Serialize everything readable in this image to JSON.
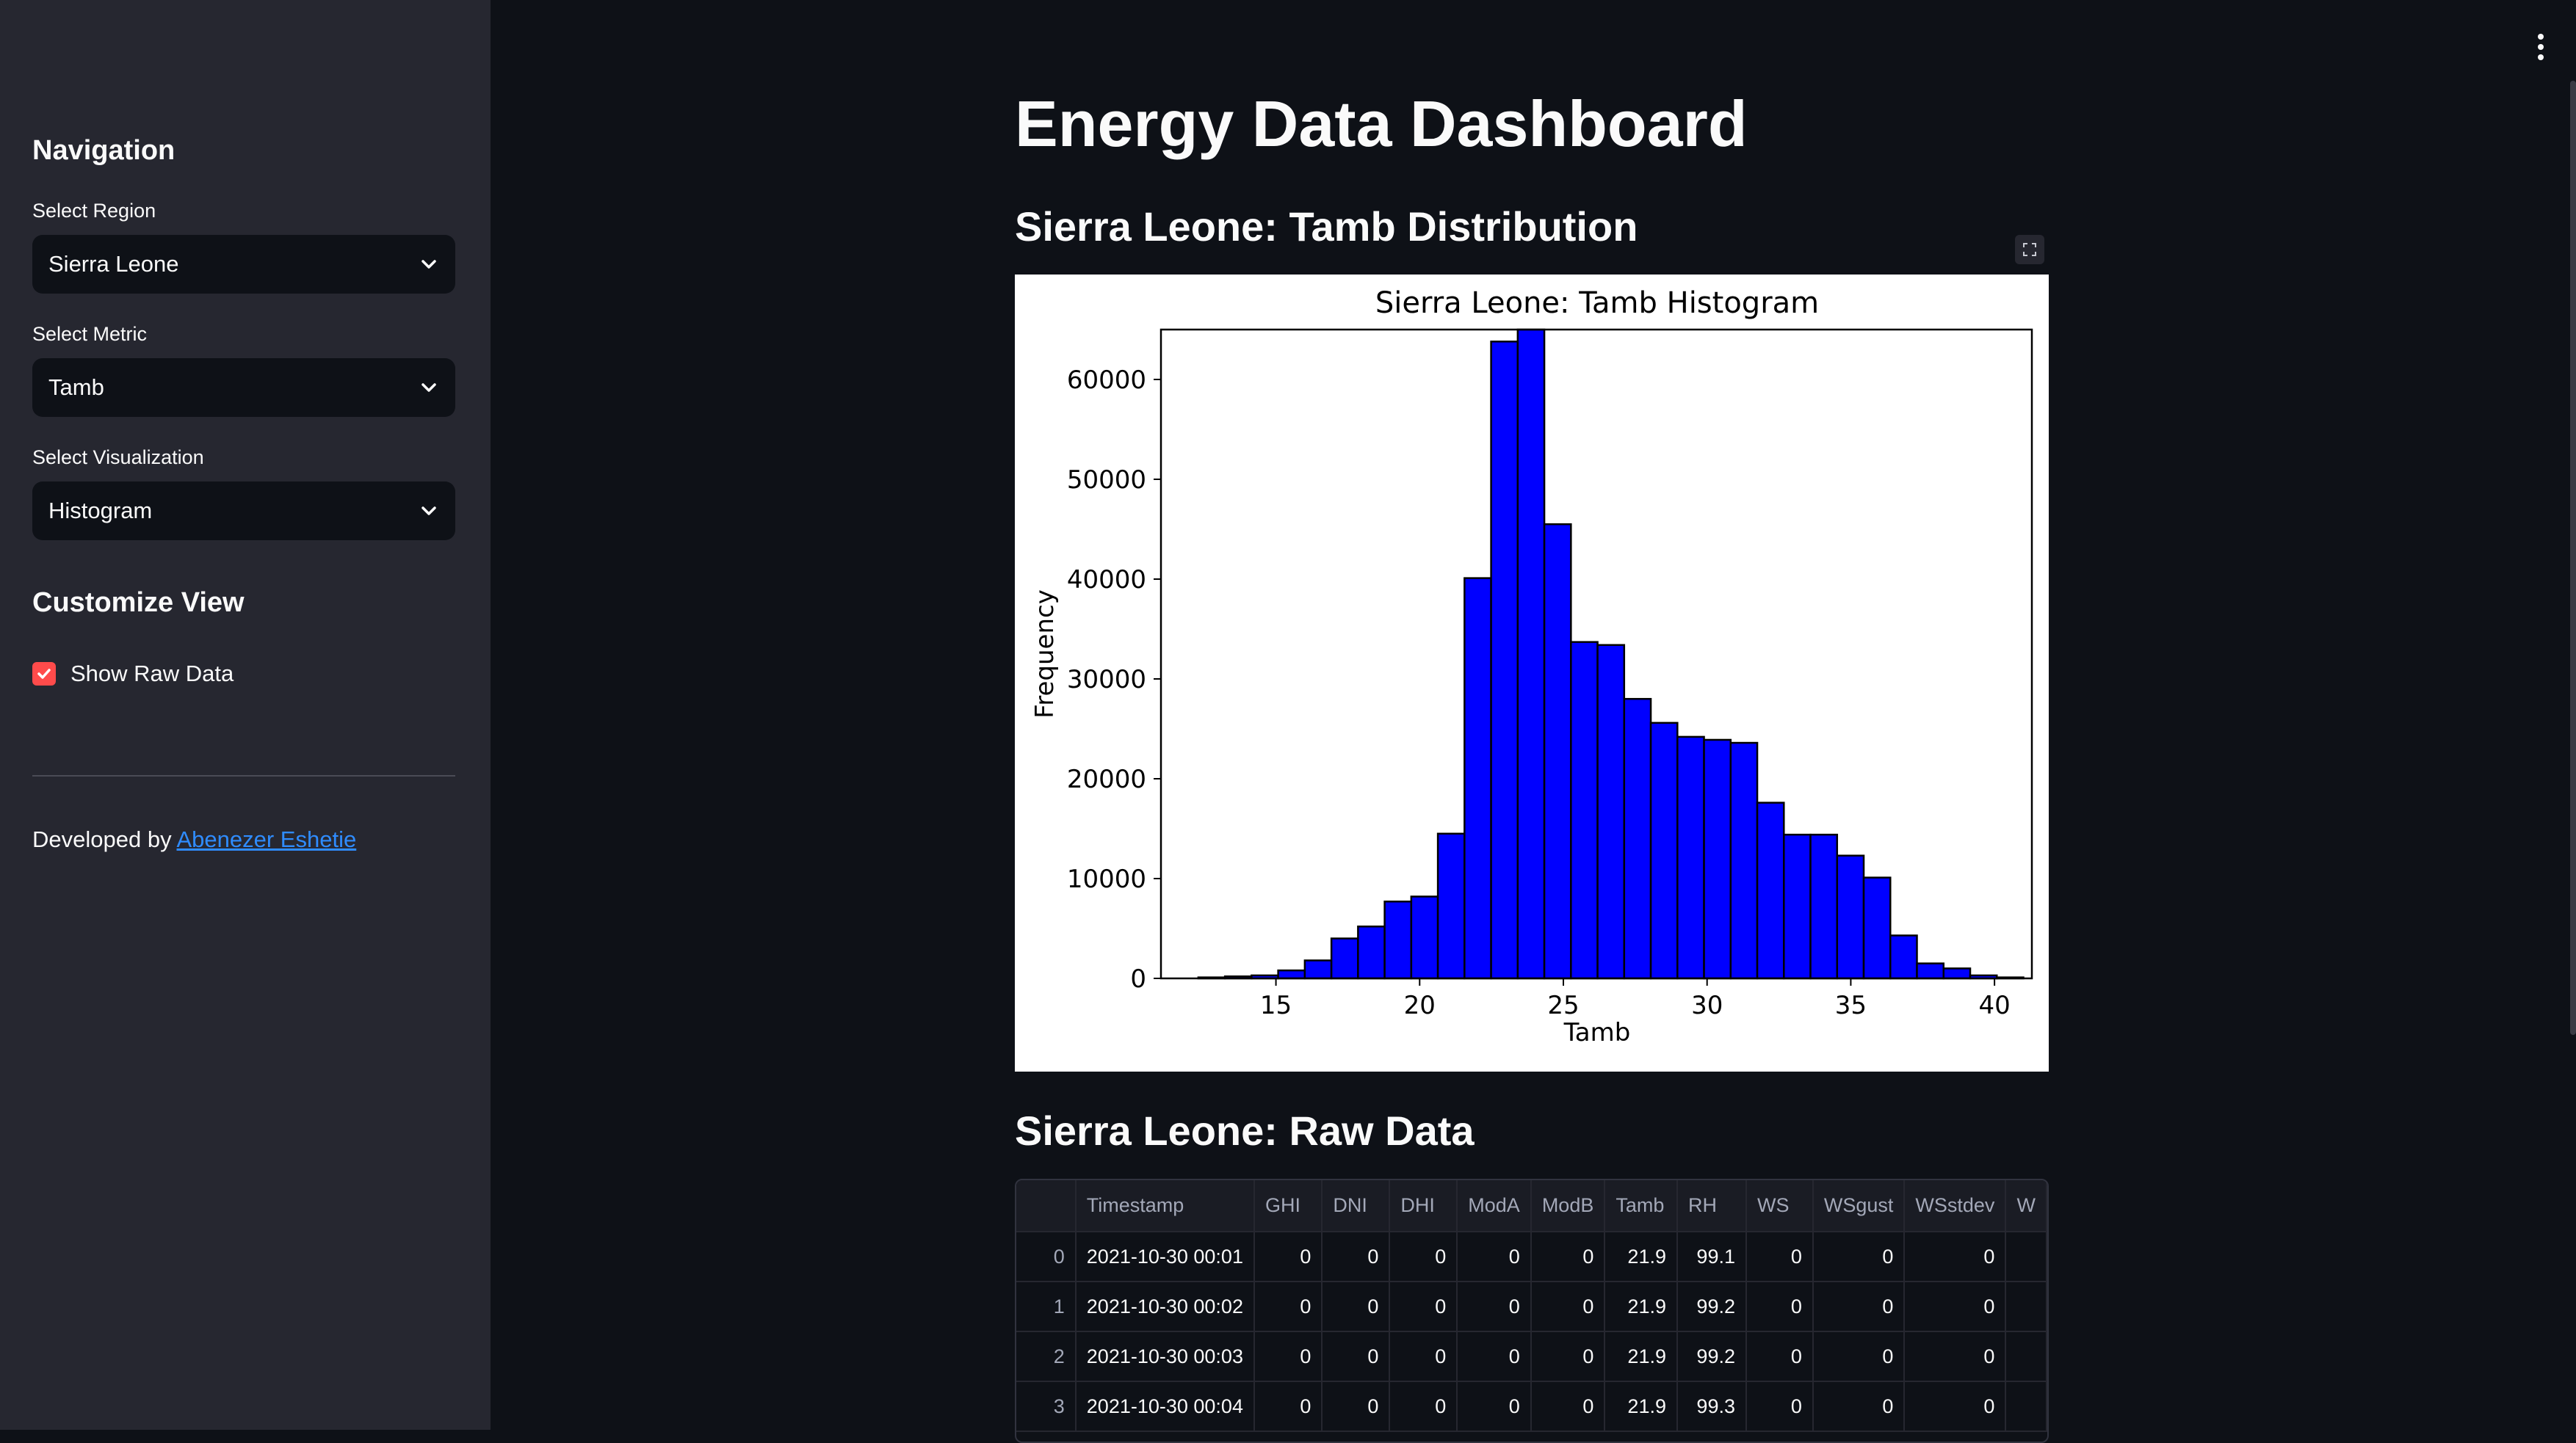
{
  "sidebar": {
    "heading": "Navigation",
    "region_label": "Select Region",
    "region_value": "Sierra Leone",
    "metric_label": "Select Metric",
    "metric_value": "Tamb",
    "viz_label": "Select Visualization",
    "viz_value": "Histogram",
    "customize_heading": "Customize View",
    "show_raw_label": "Show Raw Data",
    "show_raw_checked": true,
    "credit_prefix": "Developed by",
    "credit_link": "Abenezer Eshetie"
  },
  "main": {
    "title": "Energy Data Dashboard",
    "chart_section_title": "Sierra Leone: Tamb Distribution",
    "raw_section_title": "Sierra Leone: Raw Data"
  },
  "colors": {
    "accent": "#ff4b4b",
    "bar": "#0000ff",
    "link": "#2f8cff"
  },
  "chart_data": {
    "type": "bar",
    "title": "Sierra Leone: Tamb Histogram",
    "xlabel": "Tamb",
    "ylabel": "Frequency",
    "xlim": [
      11,
      41.3
    ],
    "ylim": [
      0,
      65000
    ],
    "xticks": [
      15,
      20,
      25,
      30,
      35,
      40
    ],
    "yticks": [
      0,
      10000,
      20000,
      30000,
      40000,
      50000,
      60000
    ],
    "bin_start": 12.3,
    "bin_width": 0.926,
    "values": [
      100,
      200,
      300,
      800,
      1800,
      4000,
      5200,
      7700,
      8200,
      14500,
      40100,
      63800,
      65000,
      45500,
      33700,
      33400,
      28000,
      25600,
      24200,
      23900,
      23600,
      17600,
      14400,
      14400,
      12300,
      10100,
      4300,
      1500,
      1000,
      300,
      100
    ],
    "bar_color": "#0000ff"
  },
  "table": {
    "columns": [
      "",
      "Timestamp",
      "GHI",
      "DNI",
      "DHI",
      "ModA",
      "ModB",
      "Tamb",
      "RH",
      "WS",
      "WSgust",
      "WSstdev",
      "W"
    ],
    "rows": [
      [
        "0",
        "2021-10-30 00:01",
        "0",
        "0",
        "0",
        "0",
        "0",
        "21.9",
        "99.1",
        "0",
        "0",
        "0",
        ""
      ],
      [
        "1",
        "2021-10-30 00:02",
        "0",
        "0",
        "0",
        "0",
        "0",
        "21.9",
        "99.2",
        "0",
        "0",
        "0",
        ""
      ],
      [
        "2",
        "2021-10-30 00:03",
        "0",
        "0",
        "0",
        "0",
        "0",
        "21.9",
        "99.2",
        "0",
        "0",
        "0",
        ""
      ],
      [
        "3",
        "2021-10-30 00:04",
        "0",
        "0",
        "0",
        "0",
        "0",
        "21.9",
        "99.3",
        "0",
        "0",
        "0",
        ""
      ]
    ]
  }
}
